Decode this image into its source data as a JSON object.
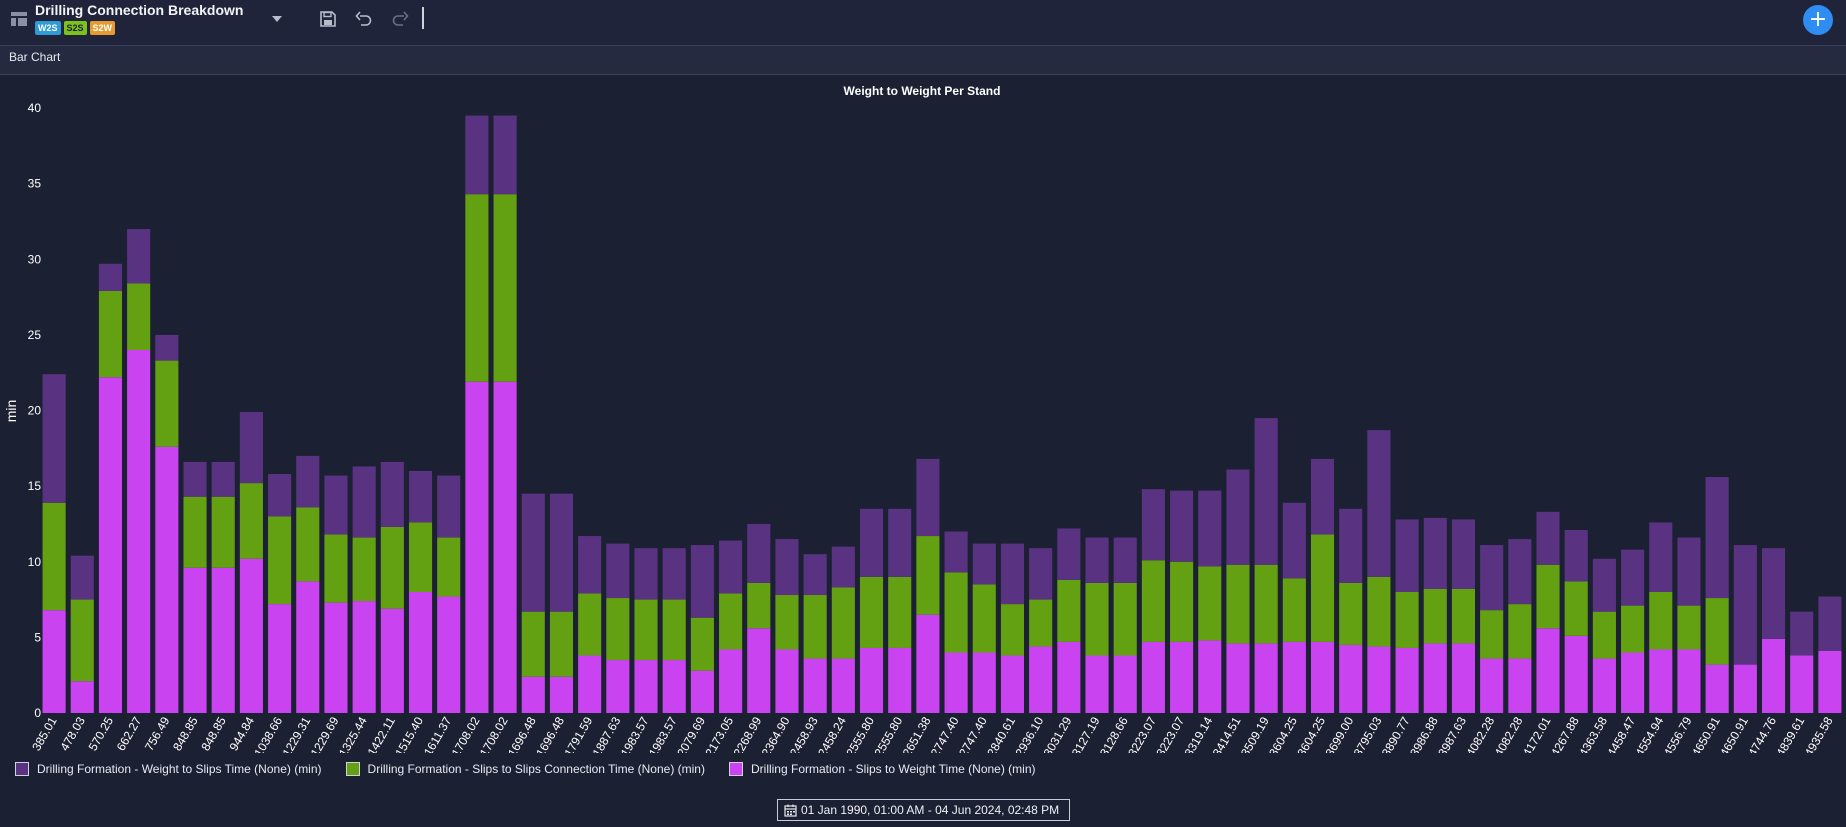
{
  "header": {
    "title": "Drilling Connection Breakdown",
    "badges": [
      "W2S",
      "S2S",
      "S2W"
    ],
    "add_label": "+"
  },
  "panel": {
    "title": "Bar Chart"
  },
  "date_range": {
    "label": "01 Jan 1990, 01:00 AM - 04 Jun 2024, 02:48 PM"
  },
  "chart_data": {
    "type": "bar",
    "stacked": true,
    "title": "Weight to Weight Per Stand",
    "ylabel": "min",
    "xlabel": "",
    "ylim": [
      0,
      40
    ],
    "yticks": [
      0,
      5,
      10,
      15,
      20,
      25,
      30,
      35,
      40
    ],
    "grid": false,
    "legend_position": "bottom-left",
    "categories": [
      "385.01",
      "478.03",
      "570.25",
      "662.27",
      "756.49",
      "848.85",
      "848.85",
      "944.84",
      "1038.66",
      "1229.31",
      "1229.69",
      "1325.44",
      "1422.11",
      "1515.40",
      "1611.37",
      "1708.02",
      "1708.02",
      "1696.48",
      "1696.48",
      "1791.59",
      "1887.63",
      "1983.57",
      "1983.57",
      "2079.69",
      "2173.05",
      "2268.99",
      "2364.90",
      "2458.93",
      "2458.24",
      "2555.80",
      "2555.80",
      "2651.38",
      "2747.40",
      "2747.40",
      "2840.61",
      "2936.10",
      "3031.29",
      "3127.19",
      "3128.66",
      "3223.07",
      "3223.07",
      "3319.14",
      "3414.51",
      "3509.19",
      "3604.25",
      "3604.25",
      "3699.00",
      "3795.03",
      "3890.77",
      "3986.88",
      "3987.63",
      "4082.28",
      "4082.28",
      "4172.01",
      "4267.88",
      "4363.58",
      "4458.47",
      "4554.94",
      "4556.79",
      "4650.91",
      "4650.91",
      "4744.76",
      "4839.61",
      "4935.58"
    ],
    "series": [
      {
        "name": "Drilling Formation - Slips to Weight Time (None) (min)",
        "color": "#c944f0",
        "values": [
          6.8,
          2.1,
          22.2,
          24.0,
          17.6,
          9.6,
          9.6,
          10.2,
          7.2,
          8.7,
          7.3,
          7.4,
          6.9,
          8.0,
          7.7,
          21.9,
          21.9,
          2.4,
          2.4,
          3.8,
          3.5,
          3.5,
          3.5,
          2.8,
          4.2,
          5.6,
          4.2,
          3.6,
          3.6,
          4.3,
          4.3,
          6.5,
          4.0,
          4.0,
          3.8,
          4.4,
          4.7,
          3.8,
          3.8,
          4.7,
          4.7,
          4.8,
          4.6,
          4.6,
          4.7,
          4.7,
          4.5,
          4.4,
          4.3,
          4.6,
          4.6,
          3.6,
          3.6,
          5.6,
          5.1,
          3.6,
          4.0,
          4.2,
          4.2,
          3.2,
          3.2,
          4.9,
          3.8,
          4.1
        ]
      },
      {
        "name": "Drilling Formation - Slips to Slips Connection Time (None) (min)",
        "color": "#63a012",
        "values": [
          7.1,
          5.4,
          5.7,
          4.4,
          5.7,
          4.7,
          4.7,
          5.0,
          5.8,
          4.9,
          4.5,
          4.2,
          5.4,
          4.6,
          3.9,
          12.4,
          12.4,
          4.3,
          4.3,
          4.1,
          4.1,
          4.0,
          4.0,
          3.5,
          3.7,
          3.0,
          3.6,
          4.2,
          4.7,
          4.7,
          4.7,
          5.2,
          5.3,
          4.5,
          3.4,
          3.1,
          4.1,
          4.8,
          4.8,
          5.4,
          5.3,
          4.9,
          5.2,
          5.2,
          4.2,
          7.1,
          4.1,
          4.6,
          3.7,
          3.6,
          3.6,
          3.2,
          3.6,
          4.2,
          3.6,
          3.1,
          3.1,
          3.8,
          2.9,
          4.4,
          0,
          0,
          0,
          0
        ]
      },
      {
        "name": "Drilling Formation - Weight to Slips Time (None) (min)",
        "color": "#5a3282",
        "values": [
          8.5,
          2.9,
          1.8,
          3.6,
          1.7,
          2.3,
          2.3,
          4.7,
          2.8,
          3.4,
          3.9,
          4.7,
          4.3,
          3.4,
          4.1,
          5.2,
          5.2,
          7.8,
          7.8,
          3.8,
          3.6,
          3.4,
          3.4,
          4.8,
          3.5,
          3.9,
          3.7,
          2.7,
          2.7,
          4.5,
          4.5,
          5.1,
          2.7,
          2.7,
          4.0,
          3.4,
          3.4,
          3.0,
          3.0,
          4.7,
          4.7,
          5.0,
          6.3,
          9.7,
          5.0,
          5.0,
          4.9,
          9.7,
          4.8,
          4.7,
          4.6,
          4.3,
          4.3,
          3.5,
          3.4,
          3.5,
          3.7,
          4.6,
          4.5,
          8.0,
          7.9,
          6.0,
          2.9,
          3.6
        ]
      }
    ]
  }
}
